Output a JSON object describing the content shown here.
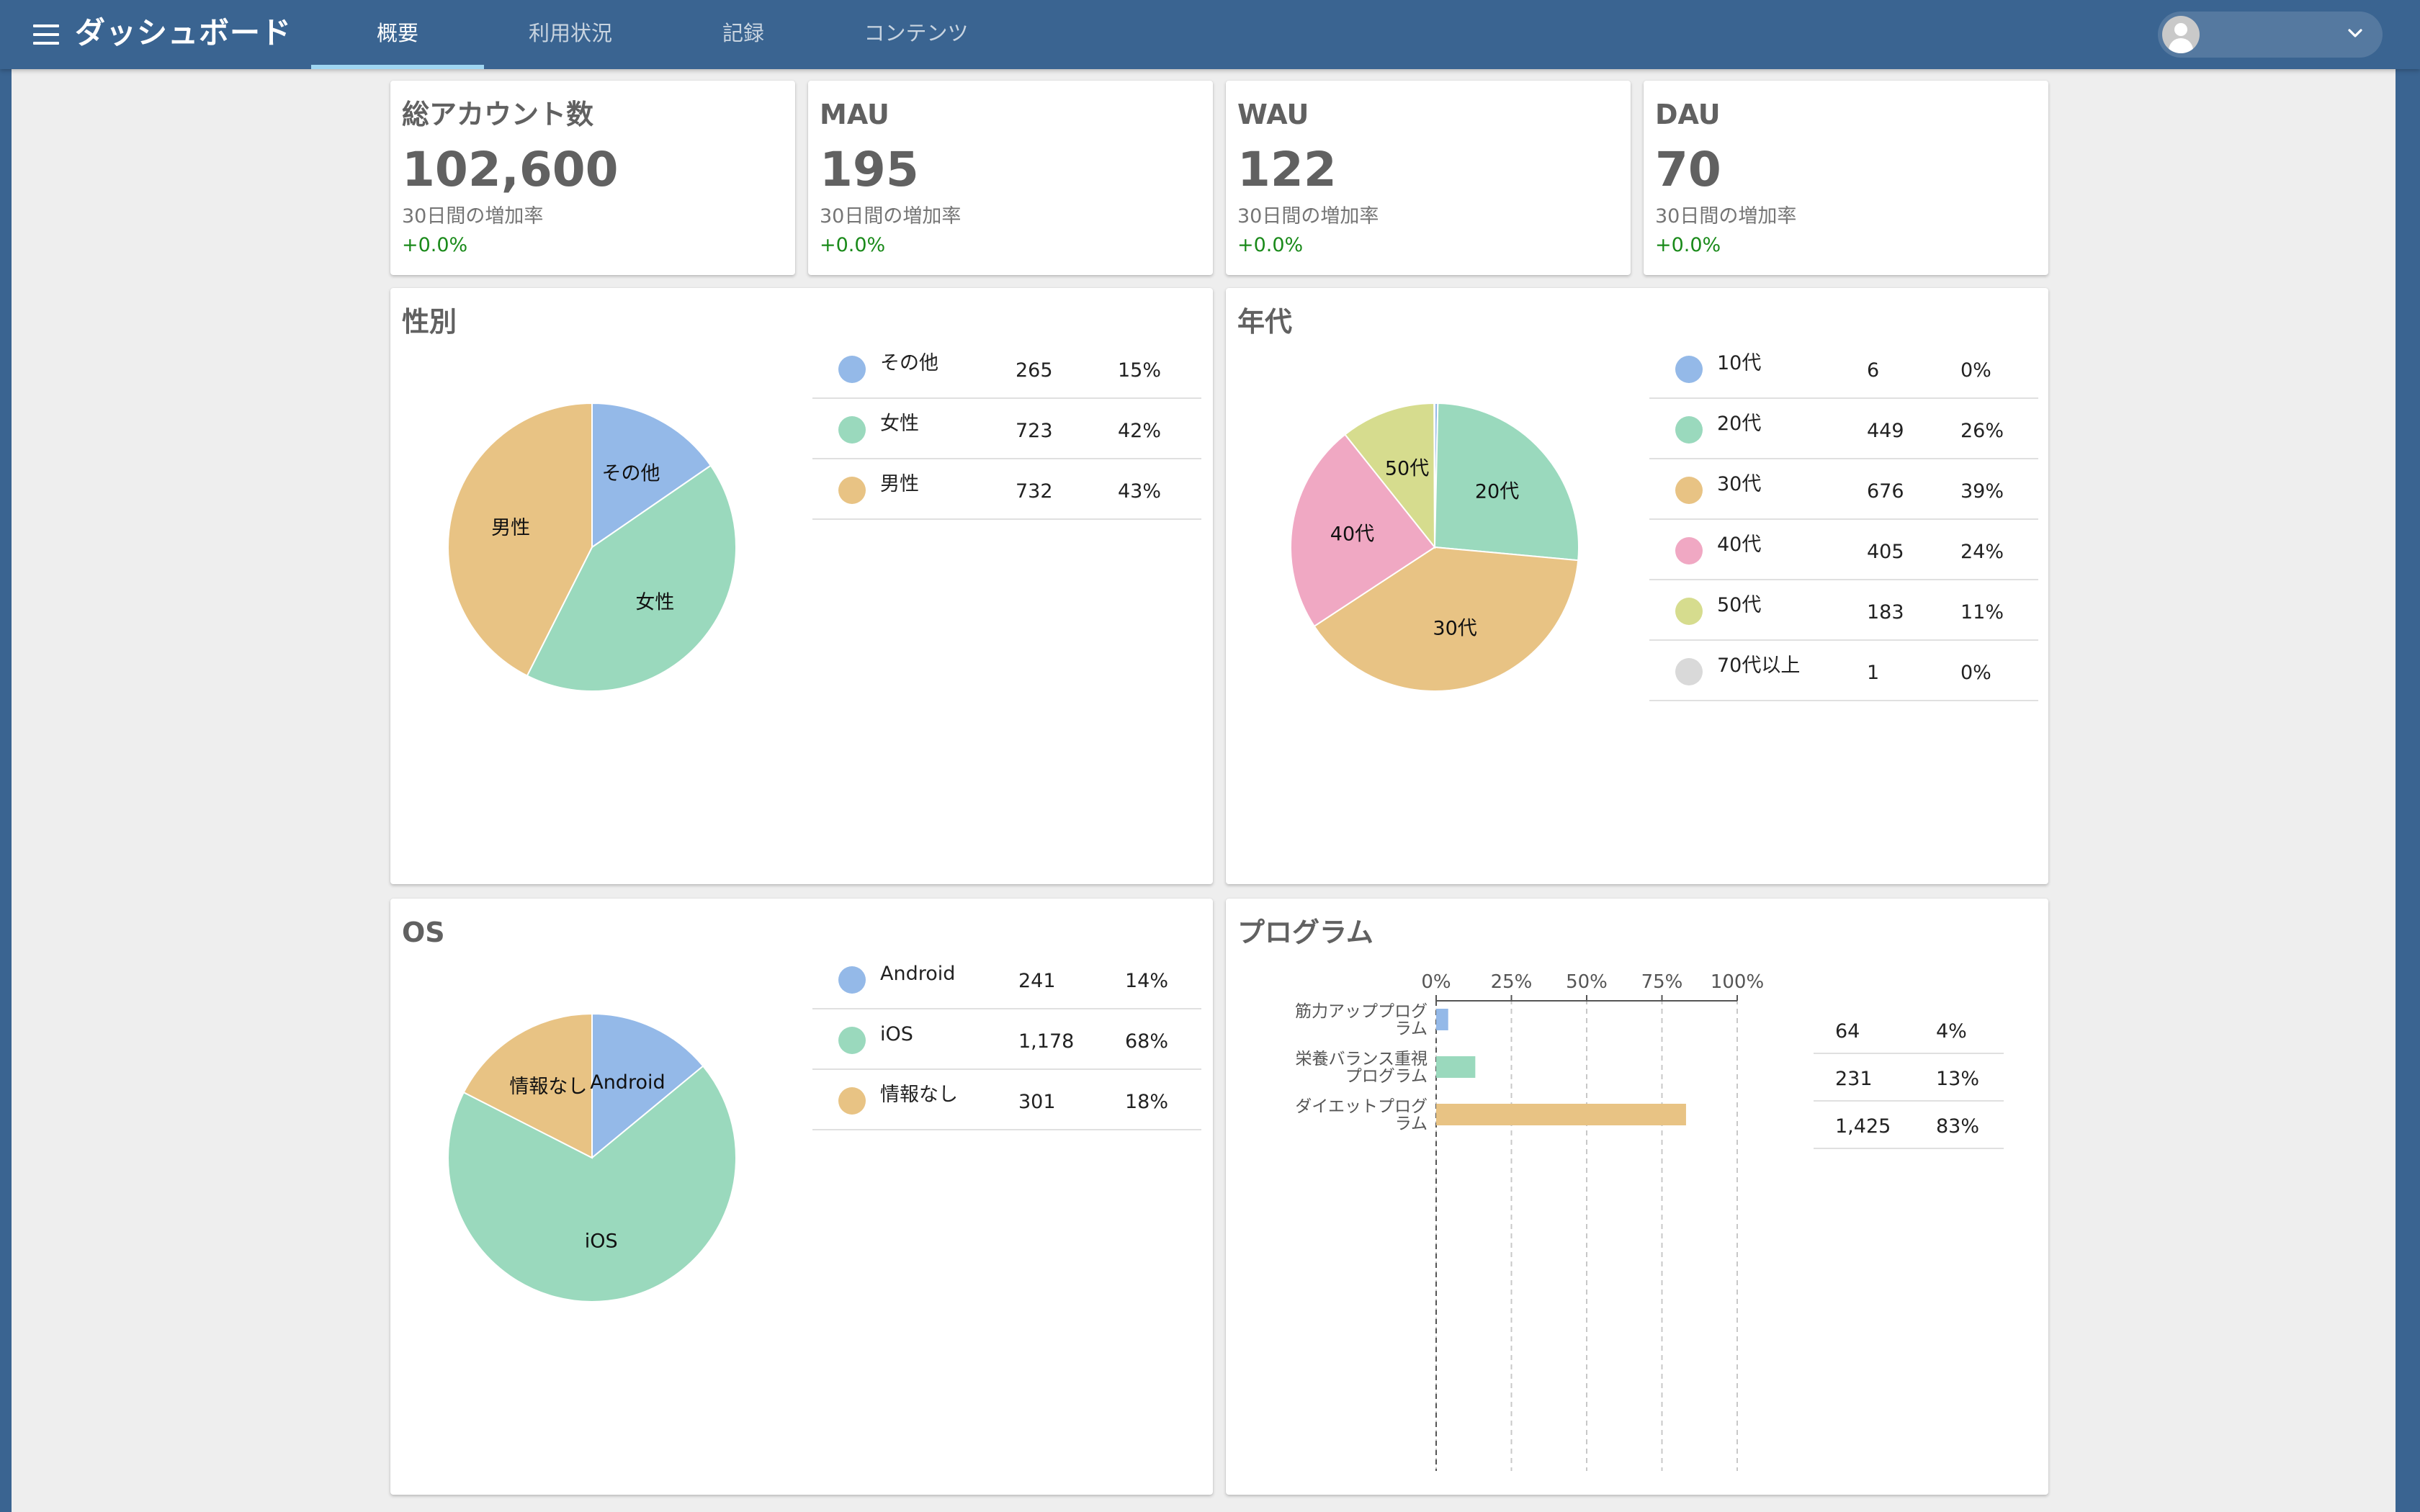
{
  "app": {
    "title": "ダッシュボード",
    "tabs": [
      {
        "label": "概要",
        "active": true
      },
      {
        "label": "利用状況",
        "active": false
      },
      {
        "label": "記録",
        "active": false
      },
      {
        "label": "コンテンツ",
        "active": false
      }
    ]
  },
  "stats": [
    {
      "title": "総アカウント数",
      "value": "102,600",
      "sub": "30日間の増加率",
      "rate": "+0.0%"
    },
    {
      "title": "MAU",
      "value": "195",
      "sub": "30日間の増加率",
      "rate": "+0.0%"
    },
    {
      "title": "WAU",
      "value": "122",
      "sub": "30日間の増加率",
      "rate": "+0.0%"
    },
    {
      "title": "DAU",
      "value": "70",
      "sub": "30日間の増加率",
      "rate": "+0.0%"
    }
  ],
  "gender": {
    "title": "性別",
    "rows": [
      {
        "name": "その他",
        "count": "265",
        "pct": "15%",
        "color": "#94b9e8"
      },
      {
        "name": "女性",
        "count": "723",
        "pct": "42%",
        "color": "#9ad9bd"
      },
      {
        "name": "男性",
        "count": "732",
        "pct": "43%",
        "color": "#e8c384"
      }
    ]
  },
  "age": {
    "title": "年代",
    "rows": [
      {
        "name": "10代",
        "count": "6",
        "pct": "0%",
        "color": "#94b9e8"
      },
      {
        "name": "20代",
        "count": "449",
        "pct": "26%",
        "color": "#9ad9bd"
      },
      {
        "name": "30代",
        "count": "676",
        "pct": "39%",
        "color": "#e8c384"
      },
      {
        "name": "40代",
        "count": "405",
        "pct": "24%",
        "color": "#f0a8c3"
      },
      {
        "name": "50代",
        "count": "183",
        "pct": "11%",
        "color": "#d6dc8e"
      },
      {
        "name": "70代以上",
        "count": "1",
        "pct": "0%",
        "color": "#d9d9d9"
      }
    ]
  },
  "os": {
    "title": "OS",
    "rows": [
      {
        "name": "Android",
        "count": "241",
        "pct": "14%",
        "color": "#94b9e8"
      },
      {
        "name": "iOS",
        "count": "1,178",
        "pct": "68%",
        "color": "#9ad9bd"
      },
      {
        "name": "情報なし",
        "count": "301",
        "pct": "18%",
        "color": "#e8c384"
      }
    ]
  },
  "program": {
    "title": "プログラム",
    "rows": [
      {
        "line1": "筋力アッププログ",
        "line2": "ラム",
        "count": "64",
        "pct": "4%",
        "color": "#94b9e8"
      },
      {
        "line1": "栄養バランス重視",
        "line2": "プログラム",
        "count": "231",
        "pct": "13%",
        "color": "#9ad9bd"
      },
      {
        "line1": "ダイエットプログ",
        "line2": "ラム",
        "count": "1,425",
        "pct": "83%",
        "color": "#e8c384"
      }
    ]
  },
  "chart_data": [
    {
      "type": "pie",
      "title": "性別",
      "categories": [
        "その他",
        "女性",
        "男性"
      ],
      "values": [
        265,
        723,
        732
      ]
    },
    {
      "type": "pie",
      "title": "年代",
      "categories": [
        "10代",
        "20代",
        "30代",
        "40代",
        "50代",
        "70代以上"
      ],
      "values": [
        6,
        449,
        676,
        405,
        183,
        1
      ]
    },
    {
      "type": "pie",
      "title": "OS",
      "categories": [
        "Android",
        "iOS",
        "情報なし"
      ],
      "values": [
        241,
        1178,
        301
      ]
    },
    {
      "type": "bar",
      "title": "プログラム",
      "orientation": "horizontal",
      "categories": [
        "筋力アッププログラム",
        "栄養バランス重視プログラム",
        "ダイエットプログラム"
      ],
      "values": [
        4,
        13,
        83
      ],
      "xlim": [
        0,
        100
      ],
      "xticks": [
        "0%",
        "25%",
        "50%",
        "75%",
        "100%"
      ],
      "grid": true
    }
  ]
}
